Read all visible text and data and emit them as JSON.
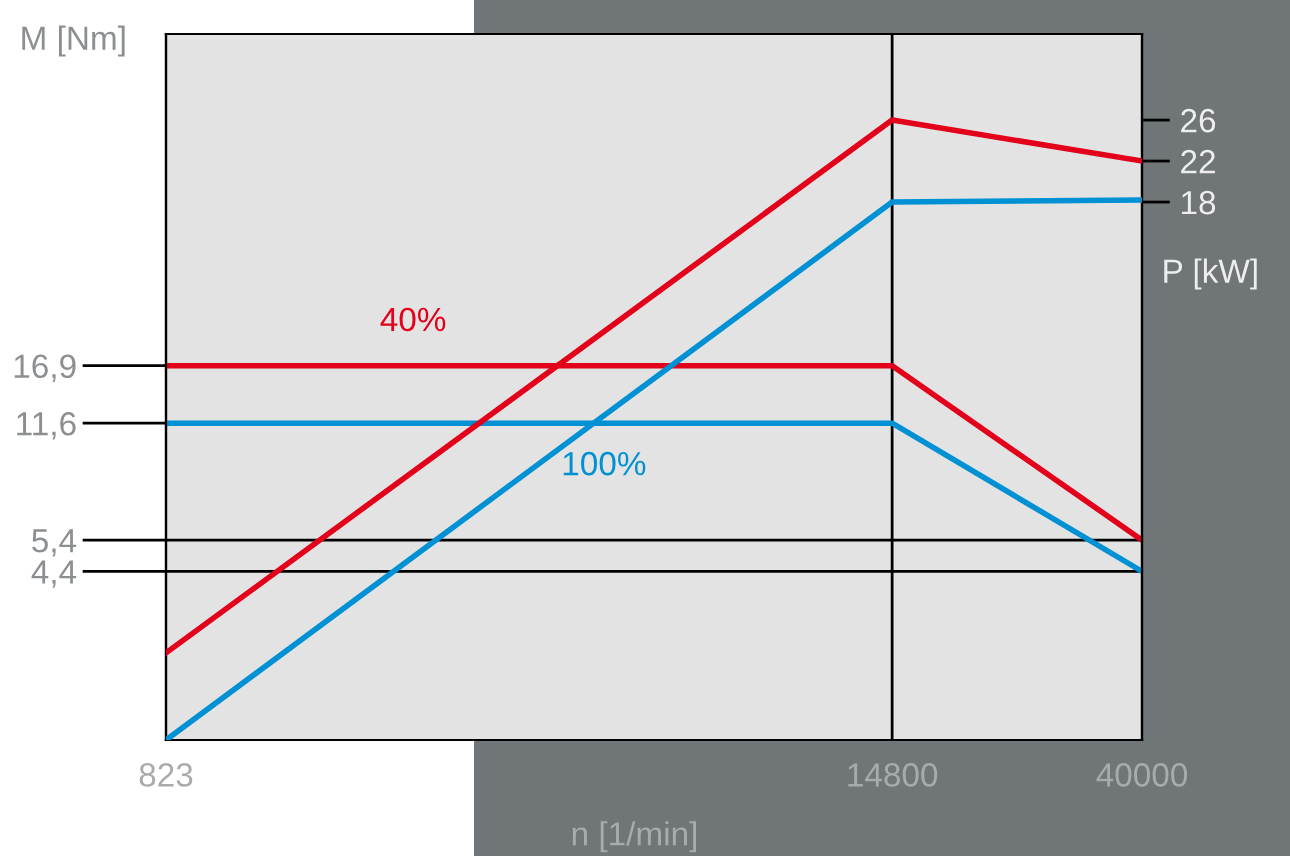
{
  "chart_data": {
    "type": "line",
    "xlabel": "n [1/min]",
    "ylabel": "M [Nm]",
    "y2label": "P [kW]",
    "log": "xy",
    "x": [
      823,
      14800,
      40000
    ],
    "series": [
      {
        "color": "#e2001a",
        "values": [
          16.9,
          16.9,
          5.4
        ]
      },
      {
        "color": "#0090d4",
        "values": [
          11.6,
          11.6,
          4.4
        ]
      },
      {
        "color": "#e2001a",
        "axis": "y2",
        "values": [
          -26,
          26,
          22
        ]
      },
      {
        "color": "#0090d4",
        "axis": "y2",
        "values": [
          -34.5,
          18,
          18.2
        ]
      }
    ],
    "xlim": [
      823,
      40000
    ],
    "xticks": [
      823,
      14800,
      40000
    ],
    "ylim": [
      1.46,
      148
    ],
    "yticks": [
      {
        "value": 4.4,
        "label": "4,4"
      },
      {
        "value": 5.4,
        "label": "5,4"
      },
      {
        "value": 11.6,
        "label": "11,6"
      },
      {
        "value": 16.9,
        "label": "16,9"
      }
    ],
    "y2lim": [
      -34.5,
      34.4
    ],
    "y2ticks": [
      18,
      22,
      26
    ],
    "ref_lines": [
      {
        "axis": "y",
        "value": 5.4,
        "color": "#000000"
      },
      {
        "axis": "y",
        "value": 4.4,
        "color": "#000000"
      },
      {
        "axis": "x",
        "value": 14800,
        "color": "#000000"
      }
    ],
    "annotations": [
      {
        "text": "40%",
        "x": 2200,
        "y": 16.9
      },
      {
        "text": "100%",
        "x": 4700,
        "y": 11.6
      }
    ],
    "grid": false,
    "legend": false,
    "marker": "none",
    "line_style": "solid"
  }
}
